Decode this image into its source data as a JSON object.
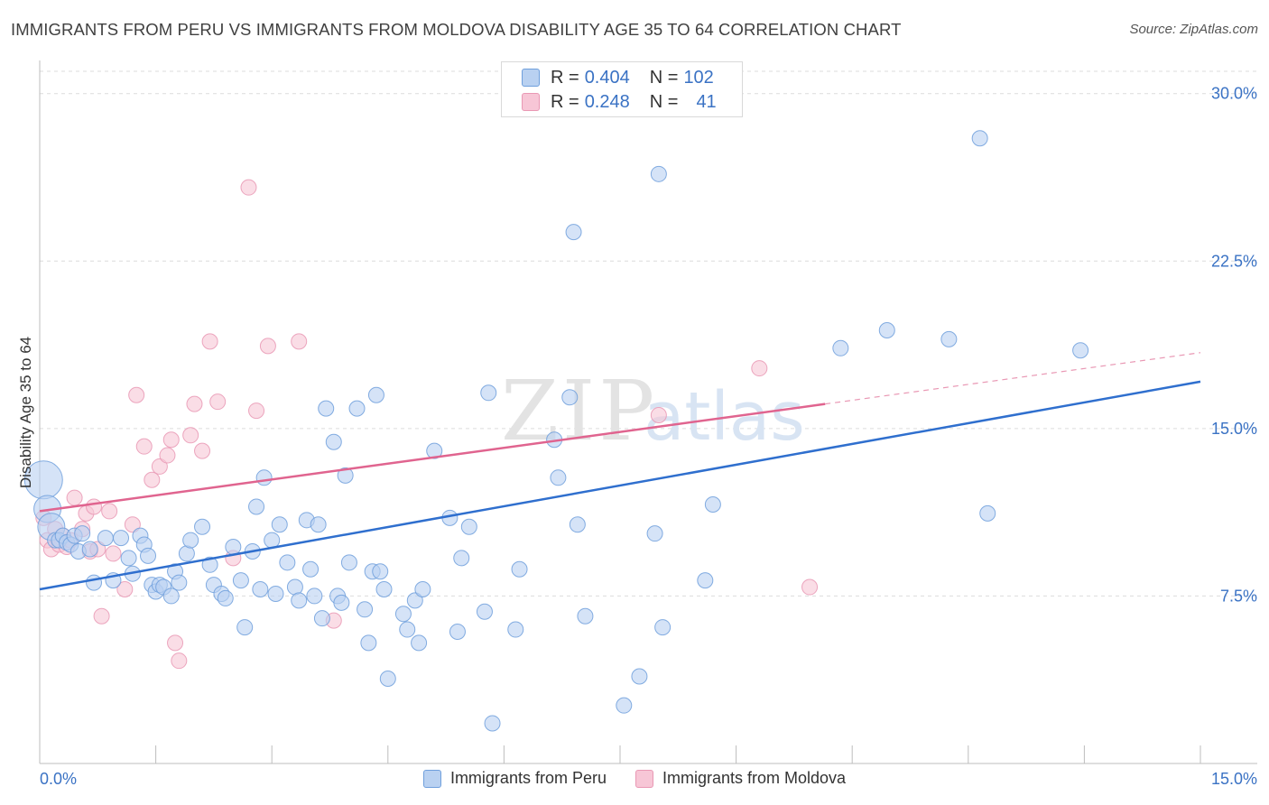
{
  "header": {
    "title": "IMMIGRANTS FROM PERU VS IMMIGRANTS FROM MOLDOVA DISABILITY AGE 35 TO 64 CORRELATION CHART",
    "source": "Source: ZipAtlas.com"
  },
  "watermark": {
    "zip": "ZIP",
    "atlas": "atlas"
  },
  "legend": {
    "rows": [
      {
        "r_label": "R = ",
        "r_value": "0.404",
        "n_label": "N = ",
        "n_value": "102",
        "color": "#6f9fdc"
      },
      {
        "r_label": "R = ",
        "r_value": "0.248",
        "n_label": "N = ",
        "n_value": "41",
        "color": "#e998b4"
      }
    ]
  },
  "chart_data": {
    "type": "scatter",
    "title": "IMMIGRANTS FROM PERU VS IMMIGRANTS FROM MOLDOVA DISABILITY AGE 35 TO 64 CORRELATION CHART",
    "xlabel": "",
    "ylabel": "Disability Age 35 to 64",
    "xlim": [
      0,
      15
    ],
    "ylim": [
      0,
      31
    ],
    "x_tick_labels": [
      "0.0%",
      "15.0%"
    ],
    "y_tick_labels": [
      "7.5%",
      "15.0%",
      "22.5%",
      "30.0%"
    ],
    "y_ticks": [
      7.5,
      15,
      22.5,
      30
    ],
    "grid": "horizontal dashed",
    "legend_position": "bottom-center",
    "series": [
      {
        "name": "Immigrants from Peru",
        "color": "#6f9fdc",
        "fill": "#b9d1f1",
        "trend": {
          "x": [
            0,
            15
          ],
          "y": [
            7.8,
            17.1
          ]
        },
        "points": [
          [
            0.05,
            12.7,
            3
          ],
          [
            0.1,
            11.4,
            2
          ],
          [
            0.15,
            10.6,
            2
          ],
          [
            0.2,
            10.0,
            1
          ],
          [
            0.25,
            10.0,
            1
          ],
          [
            0.3,
            10.2,
            1
          ],
          [
            0.35,
            9.9,
            1
          ],
          [
            0.4,
            9.8,
            1
          ],
          [
            0.45,
            10.2,
            1
          ],
          [
            0.5,
            9.5,
            1
          ],
          [
            0.55,
            10.3,
            1
          ],
          [
            0.65,
            9.6,
            1
          ],
          [
            0.7,
            8.1,
            1
          ],
          [
            0.85,
            10.1,
            1
          ],
          [
            0.95,
            8.2,
            1
          ],
          [
            1.05,
            10.1,
            1
          ],
          [
            1.15,
            9.2,
            1
          ],
          [
            1.2,
            8.5,
            1
          ],
          [
            1.3,
            10.2,
            1
          ],
          [
            1.35,
            9.8,
            1
          ],
          [
            1.4,
            9.3,
            1
          ],
          [
            1.45,
            8.0,
            1
          ],
          [
            1.5,
            7.7,
            1
          ],
          [
            1.55,
            8.0,
            1
          ],
          [
            1.6,
            7.9,
            1
          ],
          [
            1.7,
            7.5,
            1
          ],
          [
            1.75,
            8.6,
            1
          ],
          [
            1.8,
            8.1,
            1
          ],
          [
            1.9,
            9.4,
            1
          ],
          [
            1.95,
            10.0,
            1
          ],
          [
            2.1,
            10.6,
            1
          ],
          [
            2.2,
            8.9,
            1
          ],
          [
            2.25,
            8.0,
            1
          ],
          [
            2.35,
            7.6,
            1
          ],
          [
            2.4,
            7.4,
            1
          ],
          [
            2.5,
            9.7,
            1
          ],
          [
            2.6,
            8.2,
            1
          ],
          [
            2.65,
            6.1,
            1
          ],
          [
            2.75,
            9.5,
            1
          ],
          [
            2.8,
            11.5,
            1
          ],
          [
            2.85,
            7.8,
            1
          ],
          [
            2.9,
            12.8,
            1
          ],
          [
            3.0,
            10.0,
            1
          ],
          [
            3.05,
            7.6,
            1
          ],
          [
            3.1,
            10.7,
            1
          ],
          [
            3.2,
            9.0,
            1
          ],
          [
            3.3,
            7.9,
            1
          ],
          [
            3.35,
            7.3,
            1
          ],
          [
            3.45,
            10.9,
            1
          ],
          [
            3.5,
            8.7,
            1
          ],
          [
            3.55,
            7.5,
            1
          ],
          [
            3.6,
            10.7,
            1
          ],
          [
            3.65,
            6.5,
            1
          ],
          [
            3.7,
            15.9,
            1
          ],
          [
            3.8,
            14.4,
            1
          ],
          [
            3.85,
            7.5,
            1
          ],
          [
            3.9,
            7.2,
            1
          ],
          [
            3.95,
            12.9,
            1
          ],
          [
            4.0,
            9.0,
            1
          ],
          [
            4.1,
            15.9,
            1
          ],
          [
            4.2,
            6.9,
            1
          ],
          [
            4.25,
            5.4,
            1
          ],
          [
            4.3,
            8.6,
            1
          ],
          [
            4.35,
            16.5,
            1
          ],
          [
            4.4,
            8.6,
            1
          ],
          [
            4.45,
            7.8,
            1
          ],
          [
            4.5,
            3.8,
            1
          ],
          [
            4.7,
            6.7,
            1
          ],
          [
            4.75,
            6.0,
            1
          ],
          [
            4.85,
            7.3,
            1
          ],
          [
            4.9,
            5.4,
            1
          ],
          [
            4.95,
            7.8,
            1
          ],
          [
            5.1,
            14.0,
            1
          ],
          [
            5.3,
            11.0,
            1
          ],
          [
            5.4,
            5.9,
            1
          ],
          [
            5.45,
            9.2,
            1
          ],
          [
            5.55,
            10.6,
            1
          ],
          [
            5.75,
            6.8,
            1
          ],
          [
            5.8,
            16.6,
            1
          ],
          [
            5.85,
            1.8,
            1
          ],
          [
            6.15,
            6.0,
            1
          ],
          [
            6.2,
            8.7,
            1
          ],
          [
            6.65,
            14.5,
            1
          ],
          [
            6.7,
            12.8,
            1
          ],
          [
            6.85,
            16.4,
            1
          ],
          [
            6.9,
            23.8,
            1
          ],
          [
            6.95,
            10.7,
            1
          ],
          [
            7.05,
            6.6,
            1
          ],
          [
            7.55,
            2.6,
            1
          ],
          [
            7.75,
            3.9,
            1
          ],
          [
            7.95,
            10.3,
            1
          ],
          [
            8.0,
            26.4,
            1
          ],
          [
            8.05,
            6.1,
            1
          ],
          [
            8.6,
            8.2,
            1
          ],
          [
            8.7,
            11.6,
            1
          ],
          [
            10.35,
            18.6,
            1
          ],
          [
            10.95,
            19.4,
            1
          ],
          [
            11.75,
            19.0,
            1
          ],
          [
            12.15,
            28.0,
            1
          ],
          [
            12.25,
            11.2,
            1
          ],
          [
            13.45,
            18.5,
            1
          ]
        ]
      },
      {
        "name": "Immigrants from Moldova",
        "color": "#e998b4",
        "fill": "#f7c6d6",
        "trend": {
          "x": [
            0,
            10.15
          ],
          "y": [
            11.3,
            16.1
          ]
        },
        "trend_dashed": {
          "x": [
            10.15,
            15
          ],
          "y": [
            16.1,
            18.4
          ]
        },
        "points": [
          [
            0.05,
            11.0,
            1
          ],
          [
            0.1,
            10.0,
            1
          ],
          [
            0.15,
            9.6,
            1
          ],
          [
            0.2,
            10.5,
            1
          ],
          [
            0.25,
            9.8,
            1
          ],
          [
            0.3,
            10.2,
            1
          ],
          [
            0.35,
            9.7,
            1
          ],
          [
            0.4,
            10.0,
            1
          ],
          [
            0.45,
            11.9,
            1
          ],
          [
            0.55,
            10.5,
            1
          ],
          [
            0.6,
            11.2,
            1
          ],
          [
            0.65,
            9.5,
            1
          ],
          [
            0.7,
            11.5,
            1
          ],
          [
            0.75,
            9.6,
            1
          ],
          [
            0.8,
            6.6,
            1
          ],
          [
            0.9,
            11.3,
            1
          ],
          [
            0.95,
            9.4,
            1
          ],
          [
            1.1,
            7.8,
            1
          ],
          [
            1.2,
            10.7,
            1
          ],
          [
            1.25,
            16.5,
            1
          ],
          [
            1.35,
            14.2,
            1
          ],
          [
            1.45,
            12.7,
            1
          ],
          [
            1.55,
            13.3,
            1
          ],
          [
            1.65,
            13.8,
            1
          ],
          [
            1.7,
            14.5,
            1
          ],
          [
            1.75,
            5.4,
            1
          ],
          [
            1.8,
            4.6,
            1
          ],
          [
            1.95,
            14.7,
            1
          ],
          [
            2.0,
            16.1,
            1
          ],
          [
            2.1,
            14.0,
            1
          ],
          [
            2.2,
            18.9,
            1
          ],
          [
            2.3,
            16.2,
            1
          ],
          [
            2.5,
            9.2,
            1
          ],
          [
            2.7,
            25.8,
            1
          ],
          [
            2.8,
            15.8,
            1
          ],
          [
            2.95,
            18.7,
            1
          ],
          [
            3.35,
            18.9,
            1
          ],
          [
            3.8,
            6.4,
            1
          ],
          [
            8.0,
            15.6,
            1
          ],
          [
            9.3,
            17.7,
            1
          ],
          [
            9.95,
            7.9,
            1
          ]
        ]
      }
    ]
  }
}
